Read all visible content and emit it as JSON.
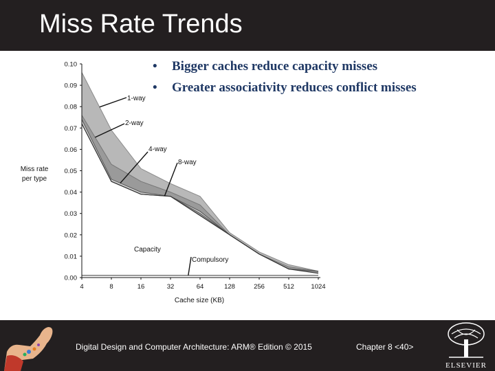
{
  "slide": {
    "title": "Miss Rate Trends",
    "bullets": [
      "Bigger caches reduce  capacity misses",
      "Greater associativity reduces conflict misses"
    ],
    "bullet_symbol": "•"
  },
  "footer": {
    "text": "Digital Design and Computer Architecture: ARM® Edition © 2015",
    "chapter": "Chapter 8 <40>",
    "publisher": "ELSEVIER"
  },
  "colors": {
    "header_bg": "#231f20",
    "bullet_text": "#1f3864",
    "band_light": "#d2d2d2",
    "band_mid": "#b8b8b8",
    "band_dark": "#9a9a9a"
  },
  "chart_data": {
    "type": "area",
    "ylabel": "Miss rate per type",
    "ylabel_lines": [
      "Miss rate",
      "per type"
    ],
    "xlabel": "Cache size (KB)",
    "x": [
      4,
      8,
      16,
      32,
      64,
      128,
      256,
      512,
      1024
    ],
    "x_tick_labels": [
      "4",
      "8",
      "16",
      "32",
      "64",
      "128",
      "256",
      "512",
      "1024"
    ],
    "y_tick_labels": [
      "0.00",
      "0.01",
      "0.02",
      "0.03",
      "0.04",
      "0.05",
      "0.06",
      "0.07",
      "0.08",
      "0.09",
      "0.10"
    ],
    "ylim": [
      0,
      0.1
    ],
    "series": [
      {
        "name": "1-way",
        "values": [
          0.096,
          0.069,
          0.051,
          0.044,
          0.038,
          0.021,
          0.012,
          0.006,
          0.003
        ]
      },
      {
        "name": "2-way",
        "values": [
          0.076,
          0.053,
          0.045,
          0.04,
          0.034,
          0.02,
          0.011,
          0.005,
          0.003
        ]
      },
      {
        "name": "4-way",
        "values": [
          0.074,
          0.046,
          0.04,
          0.038,
          0.031,
          0.02,
          0.011,
          0.004,
          0.003
        ]
      },
      {
        "name": "8-way",
        "values": [
          0.072,
          0.045,
          0.039,
          0.038,
          0.03,
          0.02,
          0.011,
          0.004,
          0.003
        ]
      },
      {
        "name": "Capacity",
        "values": [
          0.072,
          0.045,
          0.039,
          0.038,
          0.029,
          0.02,
          0.011,
          0.004,
          0.002
        ]
      },
      {
        "name": "Compulsory",
        "values": [
          0.001,
          0.001,
          0.001,
          0.001,
          0.001,
          0.001,
          0.001,
          0.001,
          0.001
        ]
      }
    ],
    "annotations": [
      "1-way",
      "2-way",
      "4-way",
      "8-way",
      "Capacity",
      "Compulsory"
    ]
  }
}
